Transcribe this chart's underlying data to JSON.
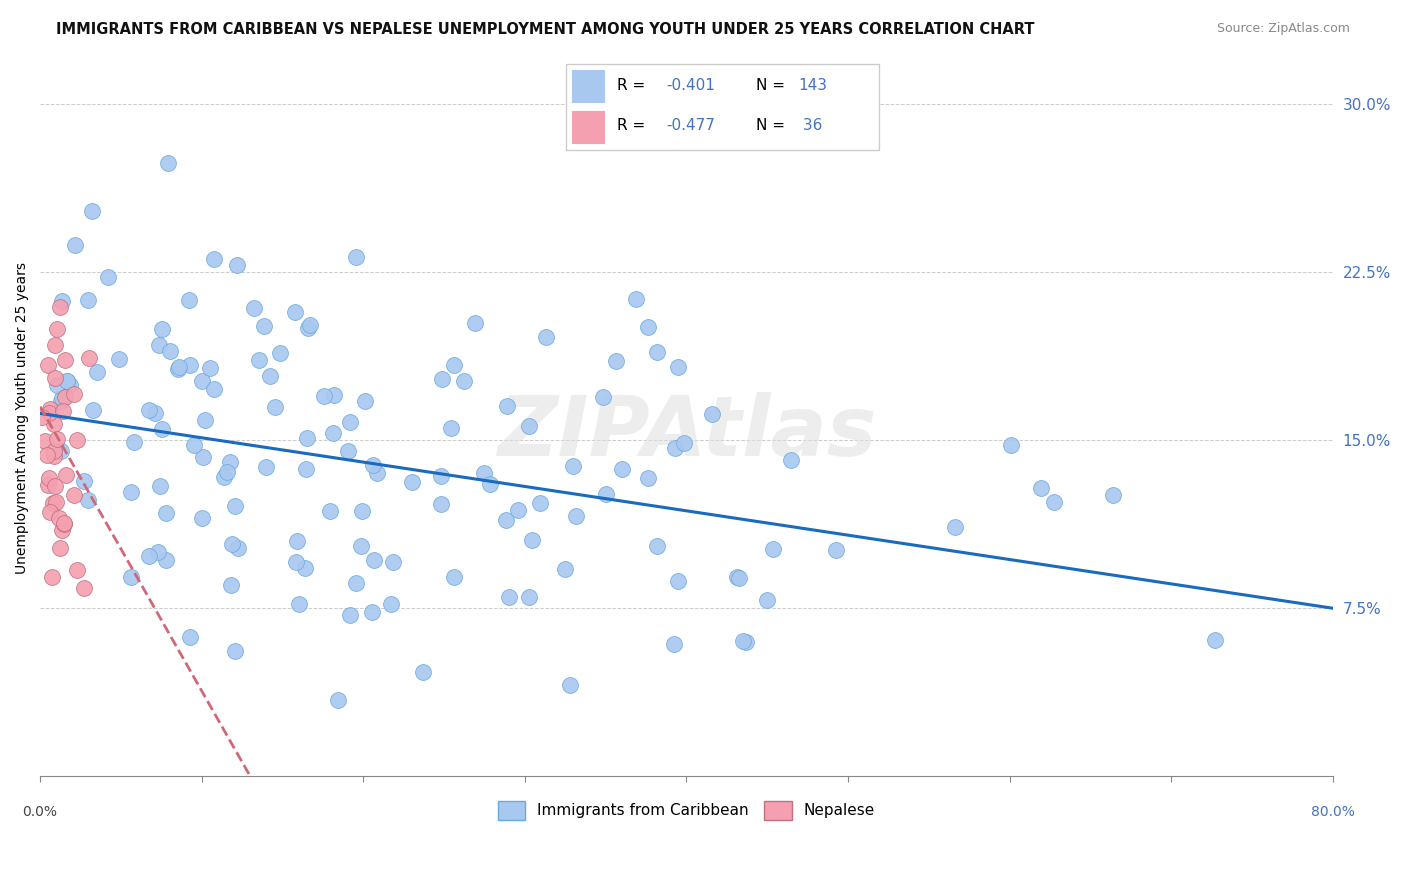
{
  "title": "IMMIGRANTS FROM CARIBBEAN VS NEPALESE UNEMPLOYMENT AMONG YOUTH UNDER 25 YEARS CORRELATION CHART",
  "source": "Source: ZipAtlas.com",
  "ylabel": "Unemployment Among Youth under 25 years",
  "xlim": [
    0.0,
    0.8
  ],
  "ylim": [
    0.0,
    0.32
  ],
  "ytick_vals": [
    0.075,
    0.15,
    0.225,
    0.3
  ],
  "ytick_labels": [
    "7.5%",
    "15.0%",
    "22.5%",
    "30.0%"
  ],
  "xtick_vals": [
    0.0,
    0.1,
    0.2,
    0.3,
    0.4,
    0.5,
    0.6,
    0.7,
    0.8
  ],
  "color_caribbean": "#a8c8f0",
  "color_nepalese": "#f4a0b0",
  "color_line_caribbean": "#1a6bbf",
  "color_line_nepalese": "#d06878",
  "color_ytick": "#4472c4",
  "color_xtick_right": "#4472c4",
  "N_caribbean": 143,
  "N_nepalese": 36,
  "intercept_caribbean": 0.162,
  "slope_caribbean": -0.10875,
  "intercept_nepalese": 0.165,
  "slope_nepalese": -1.269
}
